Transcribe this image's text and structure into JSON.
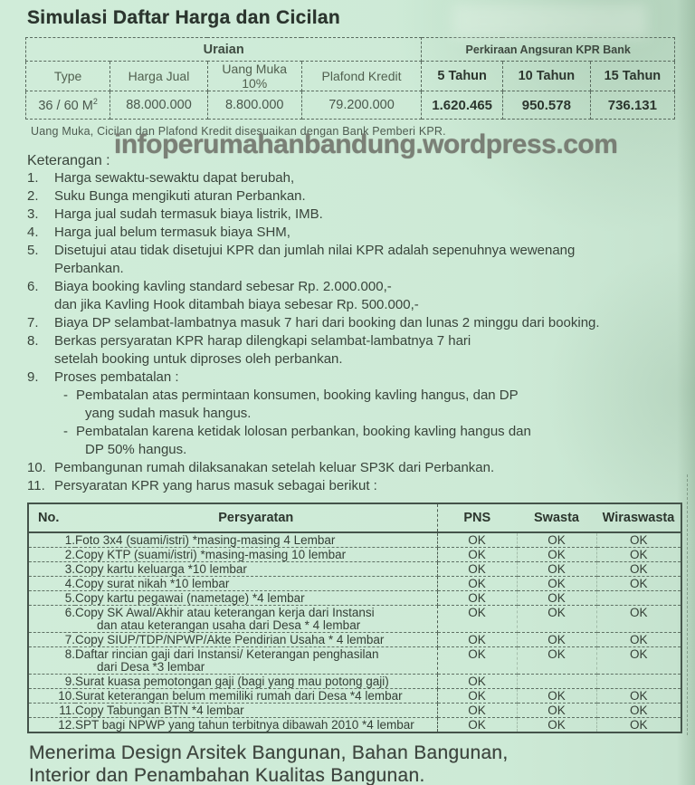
{
  "page": {
    "title": "Simulasi Daftar Harga dan Cicilan"
  },
  "price_table": {
    "group_header_left": "Uraian",
    "group_header_right": "Perkiraan Angsuran KPR Bank",
    "columns": [
      "Type",
      "Harga Jual",
      "Uang Muka 10%",
      "Plafond Kredit",
      "5 Tahun",
      "10 Tahun",
      "15 Tahun"
    ],
    "row": {
      "type_base": "36 / 60 M",
      "type_sup": "2",
      "harga_jual": "88.000.000",
      "uang_muka": "8.800.000",
      "plafond_kredit": "79.200.000",
      "angsuran_5": "1.620.465",
      "angsuran_10": "950.578",
      "angsuran_15": "736.131"
    },
    "note": "Uang Muka, Cicilan dan Plafond Kredit  disesuaikan dengan Bank Pemberi KPR."
  },
  "watermark": "infoperumahanbandung.wordpress.com",
  "keterangan": {
    "heading": "Keterangan :",
    "items": [
      {
        "no": "1.",
        "lines": [
          "Harga sewaktu-sewaktu dapat berubah,"
        ]
      },
      {
        "no": "2.",
        "lines": [
          "Suku Bunga mengikuti aturan Perbankan."
        ]
      },
      {
        "no": "3.",
        "lines": [
          "Harga jual sudah termasuk biaya listrik, IMB."
        ]
      },
      {
        "no": "4.",
        "lines": [
          "Harga jual belum termasuk biaya SHM,"
        ]
      },
      {
        "no": "5.",
        "lines": [
          "Disetujui atau tidak disetujui KPR dan jumlah nilai KPR adalah sepenuhnya wewenang",
          "Perbankan."
        ]
      },
      {
        "no": "6.",
        "lines": [
          "Biaya booking kavling standard sebesar Rp. 2.000.000,-",
          "dan jika Kavling Hook ditambah biaya sebesar Rp. 500.000,-"
        ]
      },
      {
        "no": "7.",
        "lines": [
          "Biaya DP selambat-lambatnya masuk 7 hari dari booking dan lunas 2 minggu dari booking."
        ]
      },
      {
        "no": "8.",
        "lines": [
          "Berkas persyaratan KPR harap dilengkapi selambat-lambatnya 7 hari",
          "setelah booking untuk diproses oleh perbankan."
        ]
      },
      {
        "no": "9.",
        "lines": [
          "Proses pembatalan :"
        ],
        "sub": [
          {
            "dash": "-",
            "lines": [
              "Pembatalan atas permintaan konsumen, booking kavling hangus, dan DP",
              "yang sudah masuk hangus."
            ]
          },
          {
            "dash": "-",
            "lines": [
              "Pembatalan karena ketidak lolosan perbankan, booking kavling hangus dan",
              "DP 50% hangus."
            ]
          }
        ]
      },
      {
        "no": "10.",
        "lines": [
          "Pembangunan rumah dilaksanakan setelah keluar SP3K dari Perbankan."
        ]
      },
      {
        "no": "11.",
        "lines": [
          "Persyaratan KPR yang harus masuk sebagai berikut :"
        ]
      }
    ]
  },
  "requirements_table": {
    "headers": {
      "no": "No.",
      "persyaratan": "Persyaratan",
      "pns": "PNS",
      "swasta": "Swasta",
      "wiraswasta": "Wiraswasta"
    },
    "rows": [
      {
        "no": "1.",
        "lines": [
          "Foto 3x4 (suami/istri) *masing-masing 4 Lembar"
        ],
        "pns": "OK",
        "swasta": "OK",
        "wiraswasta": "OK"
      },
      {
        "no": "2.",
        "lines": [
          "Copy KTP (suami/istri) *masing-masing 10 lembar"
        ],
        "pns": "OK",
        "swasta": "OK",
        "wiraswasta": "OK"
      },
      {
        "no": "3.",
        "lines": [
          "Copy kartu keluarga *10 lembar"
        ],
        "pns": "OK",
        "swasta": "OK",
        "wiraswasta": "OK"
      },
      {
        "no": "4.",
        "lines": [
          "Copy surat nikah *10 lembar"
        ],
        "pns": "OK",
        "swasta": "OK",
        "wiraswasta": "OK"
      },
      {
        "no": "5.",
        "lines": [
          "Copy kartu pegawai (nametage) *4 lembar"
        ],
        "pns": "OK",
        "swasta": "OK",
        "wiraswasta": ""
      },
      {
        "no": "6.",
        "lines": [
          "Copy SK Awal/Akhir atau keterangan kerja dari Instansi",
          "dan atau keterangan usaha dari Desa * 4 lembar"
        ],
        "pns": "OK",
        "swasta": "OK",
        "wiraswasta": "OK"
      },
      {
        "no": "7.",
        "lines": [
          "Copy SIUP/TDP/NPWP/Akte Pendirian Usaha * 4 lembar"
        ],
        "pns": "OK",
        "swasta": "OK",
        "wiraswasta": "OK"
      },
      {
        "no": "8.",
        "lines": [
          "Daftar rincian gaji dari Instansi/ Keterangan penghasilan",
          "dari Desa *3 lembar"
        ],
        "pns": "OK",
        "swasta": "OK",
        "wiraswasta": "OK"
      },
      {
        "no": "9.",
        "lines": [
          "Surat kuasa pemotongan gaji (bagi yang mau potong gaji)"
        ],
        "pns": "OK",
        "swasta": "",
        "wiraswasta": ""
      },
      {
        "no": "10.",
        "lines": [
          "Surat keterangan belum memiliki rumah dari Desa *4 lembar"
        ],
        "pns": "OK",
        "swasta": "OK",
        "wiraswasta": "OK"
      },
      {
        "no": "11.",
        "lines": [
          "Copy Tabungan BTN *4 lembar"
        ],
        "pns": "OK",
        "swasta": "OK",
        "wiraswasta": "OK"
      },
      {
        "no": "12.",
        "lines": [
          "SPT bagi NPWP yang tahun terbitnya dibawah 2010 *4 lembar"
        ],
        "pns": "OK",
        "swasta": "OK",
        "wiraswasta": "OK"
      }
    ]
  },
  "footer": {
    "lines": [
      "Menerima Design Arsitek Bangunan, Bahan Bangunan,",
      "Interior dan Penambahan Kualitas Bangunan."
    ]
  },
  "colors": {
    "paper": "#cdead6",
    "ink": "#39443b",
    "ink_bold": "#2b352e",
    "watermark": "#74786f"
  }
}
